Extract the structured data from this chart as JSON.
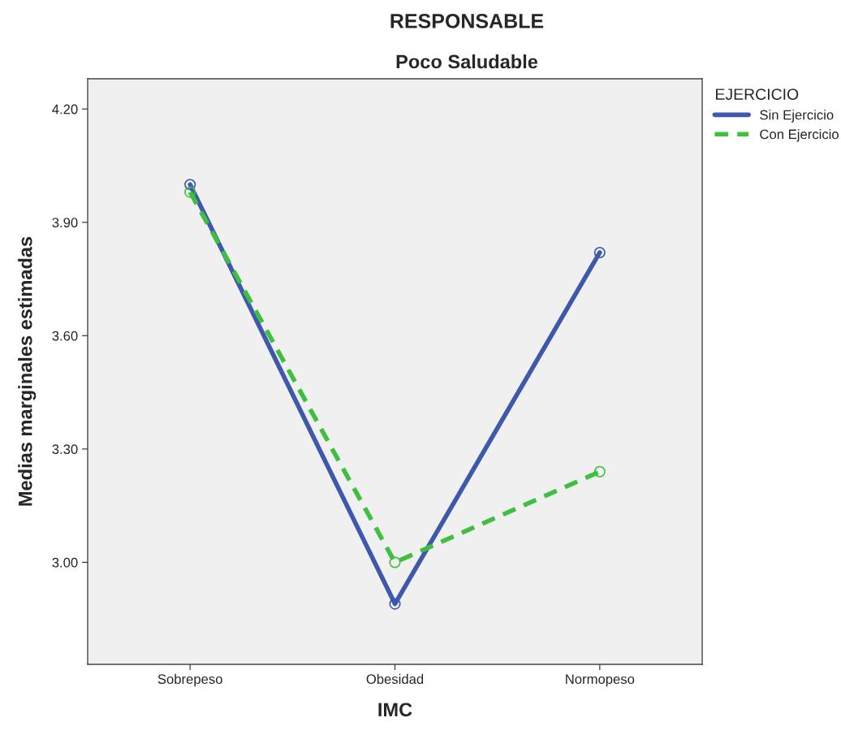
{
  "chart_data": {
    "type": "line",
    "title": "RESPONSABLE",
    "subtitle": "Poco Saludable",
    "xlabel": "IMC",
    "ylabel": "Medias marginales estimadas",
    "legend_title": "EJERCICIO",
    "categories": [
      "Sobrepeso",
      "Obesidad",
      "Normopeso"
    ],
    "series": [
      {
        "name": "Sin Ejercicio",
        "color": "#3e58ac",
        "line_style": "solid",
        "values": [
          4.0,
          2.89,
          3.82
        ]
      },
      {
        "name": "Con Ejercicio",
        "color": "#3fbf3f",
        "line_style": "dashed",
        "values": [
          3.98,
          3.0,
          3.24
        ]
      }
    ],
    "ylim": [
      2.73,
      4.28
    ],
    "yticks": [
      {
        "value": 3.0,
        "label": "3.00"
      },
      {
        "value": 3.3,
        "label": "3.30"
      },
      {
        "value": 3.6,
        "label": "3.60"
      },
      {
        "value": 3.9,
        "label": "3.90"
      },
      {
        "value": 4.2,
        "label": "4.20"
      }
    ],
    "marker": "circle",
    "grid": false,
    "legend": "top right"
  }
}
